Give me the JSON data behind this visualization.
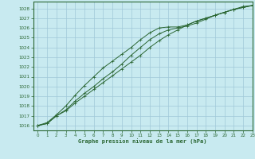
{
  "title": "Graphe pression niveau de la mer (hPa)",
  "bg_color": "#c8eaf0",
  "grid_color": "#a0c8d8",
  "line_color": "#2a6632",
  "xlim": [
    -0.5,
    23
  ],
  "ylim": [
    1015.5,
    1028.7
  ],
  "yticks": [
    1016,
    1017,
    1018,
    1019,
    1020,
    1021,
    1022,
    1023,
    1024,
    1025,
    1026,
    1027,
    1028
  ],
  "xticks": [
    0,
    1,
    2,
    3,
    4,
    5,
    6,
    7,
    8,
    9,
    10,
    11,
    12,
    13,
    14,
    15,
    16,
    17,
    18,
    19,
    20,
    21,
    22,
    23
  ],
  "line1_x": [
    0,
    1,
    2,
    3,
    4,
    5,
    6,
    7,
    8,
    9,
    10,
    11,
    12,
    13,
    14,
    15,
    16,
    17,
    18,
    19,
    20,
    21,
    22,
    23
  ],
  "line1_y": [
    1016.0,
    1016.2,
    1017.0,
    1017.6,
    1018.5,
    1019.3,
    1020.0,
    1020.8,
    1021.5,
    1022.3,
    1023.2,
    1024.0,
    1024.8,
    1025.4,
    1025.8,
    1026.0,
    1026.2,
    1026.5,
    1026.9,
    1027.3,
    1027.6,
    1027.9,
    1028.1,
    1028.3
  ],
  "line2_x": [
    0,
    1,
    2,
    3,
    4,
    5,
    6,
    7,
    8,
    9,
    10,
    11,
    12,
    13,
    14,
    15,
    16,
    17,
    18,
    19,
    20,
    21,
    22,
    23
  ],
  "line2_y": [
    1016.0,
    1016.2,
    1017.0,
    1017.5,
    1018.3,
    1019.0,
    1019.7,
    1020.4,
    1021.1,
    1021.8,
    1022.5,
    1023.2,
    1024.0,
    1024.7,
    1025.3,
    1025.8,
    1026.3,
    1026.7,
    1027.0,
    1027.3,
    1027.6,
    1027.9,
    1028.2,
    1028.3
  ],
  "line3_x": [
    0,
    1,
    2,
    3,
    4,
    5,
    6,
    7,
    8,
    9,
    10,
    11,
    12,
    13,
    14,
    15,
    16,
    17,
    18,
    19,
    20,
    21,
    22,
    23
  ],
  "line3_y": [
    1016.0,
    1016.3,
    1017.1,
    1018.0,
    1019.1,
    1020.1,
    1021.0,
    1021.9,
    1022.6,
    1023.3,
    1024.0,
    1024.8,
    1025.5,
    1026.0,
    1026.1,
    1026.1,
    1026.3,
    1026.7,
    1027.0,
    1027.3,
    1027.6,
    1027.9,
    1028.1,
    1028.3
  ]
}
